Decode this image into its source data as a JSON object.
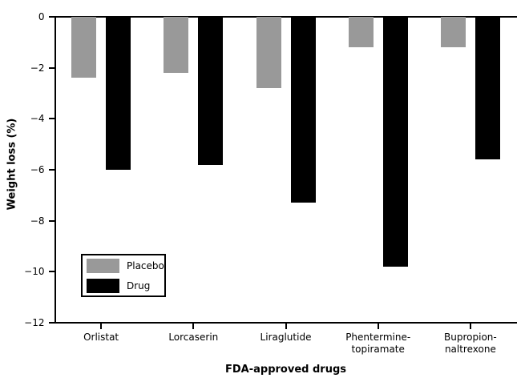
{
  "chart_data": {
    "type": "bar",
    "title": "",
    "xlabel": "FDA-approved drugs",
    "ylabel": "Weight loss (%)",
    "categories": [
      "Orlistat",
      "Lorcaserin",
      "Liraglutide",
      "Phentermine-topiramate",
      "Bupropion-naltrexone"
    ],
    "category_label_lines": [
      [
        "Orlistat"
      ],
      [
        "Lorcaserin"
      ],
      [
        "Liraglutide"
      ],
      [
        "Phentermine-",
        "topiramate"
      ],
      [
        "Bupropion-",
        "naltrexone"
      ]
    ],
    "series": [
      {
        "name": "Placebo",
        "color": "#999999",
        "values": [
          -2.4,
          -2.2,
          -2.8,
          -1.2,
          -1.2
        ]
      },
      {
        "name": "Drug",
        "color": "#000000",
        "values": [
          -6.0,
          -5.8,
          -7.3,
          -9.8,
          -5.6
        ]
      }
    ],
    "ylim": [
      -12,
      0
    ],
    "yticks": [
      0,
      -2,
      -4,
      -6,
      -8,
      -10,
      -12
    ],
    "ytick_labels": [
      "0",
      "−2",
      "−4",
      "−6",
      "−8",
      "−10",
      "−12"
    ],
    "legend": {
      "position": "lower-left",
      "entries": [
        "Placebo",
        "Drug"
      ]
    },
    "grid": false,
    "axis_color": "#000000",
    "background": "#ffffff"
  }
}
